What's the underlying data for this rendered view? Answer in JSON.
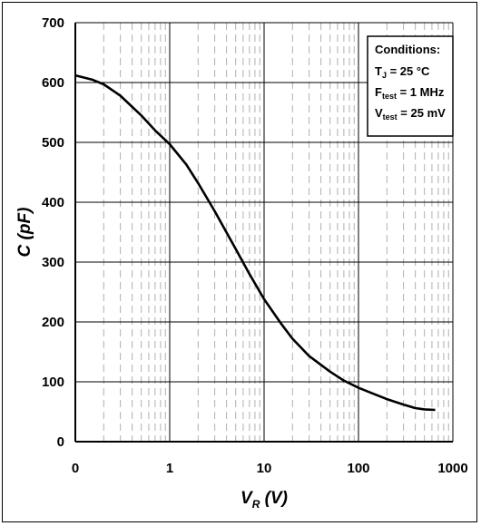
{
  "chart_data": {
    "type": "line",
    "title": "",
    "xscale": "log",
    "xlim_display": [
      "0",
      "1000"
    ],
    "xticks": [
      "0",
      "1",
      "10",
      "100",
      "1000"
    ],
    "ylim": [
      0,
      700
    ],
    "yticks": [
      "0",
      "100",
      "200",
      "300",
      "400",
      "500",
      "600",
      "700"
    ],
    "xlabel_main": "V",
    "xlabel_sub": "R",
    "xlabel_unit": "(V)",
    "ylabel": "C (pF)",
    "grid": true,
    "legend_placement": "top-right",
    "series": [
      {
        "x": [
          0.1,
          0.15,
          0.2,
          0.3,
          0.5,
          0.7,
          1,
          1.5,
          2,
          3,
          5,
          7,
          10,
          15,
          20,
          30,
          50,
          70,
          100,
          150,
          200,
          300,
          400,
          500,
          650
        ],
        "y": [
          612,
          605,
          597,
          578,
          545,
          520,
          497,
          463,
          432,
          385,
          322,
          280,
          238,
          198,
          172,
          143,
          117,
          102,
          90,
          79,
          71,
          62,
          56,
          54,
          53
        ]
      }
    ],
    "conditions_title": "Conditions:",
    "conditions": [
      {
        "main": "T",
        "sub": "J",
        "rest": " = 25 °C"
      },
      {
        "main": "F",
        "sub": "test",
        "rest": " = 1 MHz"
      },
      {
        "main": "V",
        "sub": "test",
        "rest": " = 25 mV"
      }
    ],
    "colors": {
      "line": "#000000",
      "major_grid": "#000000",
      "minor_grid": "#b0b0b0"
    }
  }
}
